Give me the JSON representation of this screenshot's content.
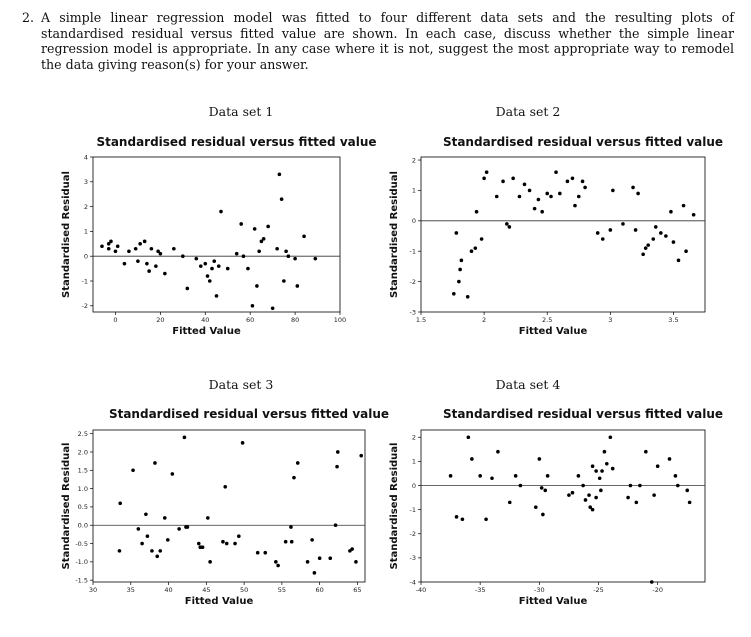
{
  "question": {
    "number": "2.",
    "text": "A simple linear regression model was fitted to four different data sets and the resulting plots of standardised residual versus fitted value are shown. In each case, discuss whether the simple linear regression model is appropriate. In any case where it is not, suggest the most appropriate way to remodel the data giving reason(s) for your answer."
  },
  "chart_data": [
    {
      "label": "Data set 1",
      "type": "scatter",
      "title": "Standardised residual versus fitted value",
      "xlabel": "Fitted Value",
      "ylabel": "Standardised Residual",
      "xlim": [
        -10,
        100
      ],
      "ylim": [
        -2.25,
        4
      ],
      "xticks": [
        0,
        20,
        40,
        60,
        80,
        100
      ],
      "yticks": [
        -2,
        -1,
        0,
        1,
        2,
        3,
        4
      ],
      "reference_line": 0,
      "points": [
        [
          -6,
          0.4
        ],
        [
          -3,
          0.5
        ],
        [
          -3,
          0.3
        ],
        [
          -2,
          0.6
        ],
        [
          0,
          0.2
        ],
        [
          1,
          0.4
        ],
        [
          4,
          -0.3
        ],
        [
          6,
          0.2
        ],
        [
          9,
          0.3
        ],
        [
          10,
          -0.2
        ],
        [
          11,
          0.5
        ],
        [
          13,
          0.6
        ],
        [
          14,
          -0.3
        ],
        [
          15,
          -0.6
        ],
        [
          16,
          0.3
        ],
        [
          18,
          -0.4
        ],
        [
          19,
          0.2
        ],
        [
          20,
          0.1
        ],
        [
          22,
          -0.7
        ],
        [
          26,
          0.3
        ],
        [
          30,
          0
        ],
        [
          32,
          -1.3
        ],
        [
          36,
          -0.1
        ],
        [
          38,
          -0.4
        ],
        [
          40,
          -0.3
        ],
        [
          41,
          -0.8
        ],
        [
          42,
          -1.0
        ],
        [
          43,
          -0.5
        ],
        [
          44,
          -0.2
        ],
        [
          45,
          -1.6
        ],
        [
          46,
          -0.4
        ],
        [
          47,
          1.8
        ],
        [
          50,
          -0.5
        ],
        [
          54,
          0.1
        ],
        [
          56,
          1.3
        ],
        [
          57,
          0.0
        ],
        [
          59,
          -0.5
        ],
        [
          61,
          -2.0
        ],
        [
          62,
          1.1
        ],
        [
          63,
          -1.2
        ],
        [
          64,
          0.2
        ],
        [
          65,
          0.6
        ],
        [
          66,
          0.7
        ],
        [
          68,
          1.2
        ],
        [
          70,
          -2.1
        ],
        [
          72,
          0.3
        ],
        [
          73,
          3.3
        ],
        [
          74,
          2.3
        ],
        [
          75,
          -1.0
        ],
        [
          76,
          0.2
        ],
        [
          77,
          0
        ],
        [
          80,
          -0.1
        ],
        [
          81,
          -1.2
        ],
        [
          84,
          0.8
        ],
        [
          89,
          -0.1
        ]
      ]
    },
    {
      "label": "Data set 2",
      "type": "scatter",
      "title": "Standardised residual versus fitted value",
      "xlabel": "Fitted Value",
      "ylabel": "Standardised Residual",
      "xlim": [
        1.5,
        3.75
      ],
      "ylim": [
        -3,
        2.1
      ],
      "xticks": [
        1.5,
        2.0,
        2.5,
        3.0,
        3.5
      ],
      "yticks": [
        -3,
        -2,
        -1,
        0,
        1,
        2
      ],
      "reference_line": 0,
      "points": [
        [
          1.76,
          -2.4
        ],
        [
          1.78,
          -0.4
        ],
        [
          1.8,
          -2.0
        ],
        [
          1.81,
          -1.6
        ],
        [
          1.82,
          -1.3
        ],
        [
          1.87,
          -2.5
        ],
        [
          1.9,
          -1.0
        ],
        [
          1.93,
          -0.9
        ],
        [
          1.94,
          0.3
        ],
        [
          1.98,
          -0.6
        ],
        [
          2.0,
          1.4
        ],
        [
          2.02,
          1.6
        ],
        [
          2.1,
          0.8
        ],
        [
          2.15,
          1.3
        ],
        [
          2.18,
          -0.1
        ],
        [
          2.2,
          -0.2
        ],
        [
          2.23,
          1.4
        ],
        [
          2.28,
          0.8
        ],
        [
          2.32,
          1.2
        ],
        [
          2.36,
          1.0
        ],
        [
          2.4,
          0.4
        ],
        [
          2.43,
          0.7
        ],
        [
          2.46,
          0.3
        ],
        [
          2.5,
          0.9
        ],
        [
          2.53,
          0.8
        ],
        [
          2.57,
          1.6
        ],
        [
          2.6,
          0.9
        ],
        [
          2.66,
          1.3
        ],
        [
          2.7,
          1.4
        ],
        [
          2.72,
          0.5
        ],
        [
          2.75,
          0.8
        ],
        [
          2.78,
          1.3
        ],
        [
          2.8,
          1.1
        ],
        [
          2.9,
          -0.4
        ],
        [
          2.94,
          -0.6
        ],
        [
          3.0,
          -0.3
        ],
        [
          3.02,
          1.0
        ],
        [
          3.1,
          -0.1
        ],
        [
          3.18,
          1.1
        ],
        [
          3.2,
          -0.3
        ],
        [
          3.22,
          0.9
        ],
        [
          3.26,
          -1.1
        ],
        [
          3.28,
          -0.9
        ],
        [
          3.3,
          -0.8
        ],
        [
          3.34,
          -0.6
        ],
        [
          3.36,
          -0.2
        ],
        [
          3.4,
          -0.4
        ],
        [
          3.44,
          -0.5
        ],
        [
          3.48,
          0.3
        ],
        [
          3.5,
          -0.7
        ],
        [
          3.54,
          -1.3
        ],
        [
          3.58,
          0.5
        ],
        [
          3.6,
          -1.0
        ],
        [
          3.66,
          0.2
        ]
      ]
    },
    {
      "label": "Data set 3",
      "type": "scatter",
      "title": "Standardised residual versus fitted value",
      "xlabel": "Fitted Value",
      "ylabel": "Standardised Residual",
      "xlim": [
        30,
        66
      ],
      "ylim": [
        -1.55,
        2.6
      ],
      "xticks": [
        30,
        35,
        40,
        45,
        50,
        55,
        60,
        65
      ],
      "yticks": [
        -1.5,
        -1.0,
        -0.5,
        0.0,
        0.5,
        1.0,
        1.5,
        2.0,
        2.5
      ],
      "yticklabels": [
        "-1.5",
        "-1.0",
        "-0.5",
        "0.0",
        "0.5",
        "1.0",
        "1.5",
        "2.0",
        "2.5"
      ],
      "reference_line": 0,
      "points": [
        [
          33.5,
          -0.7
        ],
        [
          33.6,
          0.6
        ],
        [
          35.3,
          1.5
        ],
        [
          36,
          -0.1
        ],
        [
          36.5,
          -0.5
        ],
        [
          37,
          0.3
        ],
        [
          37.2,
          -0.3
        ],
        [
          37.8,
          -0.7
        ],
        [
          38.2,
          1.7
        ],
        [
          38.5,
          -0.85
        ],
        [
          38.9,
          -0.7
        ],
        [
          39.5,
          0.2
        ],
        [
          39.9,
          -0.4
        ],
        [
          40.5,
          1.4
        ],
        [
          41.4,
          -0.1
        ],
        [
          42.1,
          2.4
        ],
        [
          42.3,
          -0.05
        ],
        [
          42.5,
          -0.05
        ],
        [
          44,
          -0.5
        ],
        [
          44.2,
          -0.6
        ],
        [
          44.5,
          -0.6
        ],
        [
          45.2,
          0.2
        ],
        [
          45.5,
          -1.0
        ],
        [
          47.2,
          -0.45
        ],
        [
          47.5,
          1.05
        ],
        [
          47.7,
          -0.5
        ],
        [
          48.8,
          -0.5
        ],
        [
          49.3,
          -0.3
        ],
        [
          49.8,
          2.25
        ],
        [
          51.8,
          -0.75
        ],
        [
          52.8,
          -0.75
        ],
        [
          54.2,
          -1.0
        ],
        [
          54.5,
          -1.1
        ],
        [
          55.5,
          -0.45
        ],
        [
          56.2,
          -0.05
        ],
        [
          56.3,
          -0.45
        ],
        [
          56.6,
          1.3
        ],
        [
          57.1,
          1.7
        ],
        [
          58.4,
          -1.0
        ],
        [
          59,
          -0.4
        ],
        [
          59.3,
          -1.3
        ],
        [
          60,
          -0.9
        ],
        [
          61.4,
          -0.9
        ],
        [
          62.1,
          0.0
        ],
        [
          62.3,
          1.6
        ],
        [
          62.4,
          2.0
        ],
        [
          64,
          -0.7
        ],
        [
          64.3,
          -0.65
        ],
        [
          64.8,
          -1.0
        ],
        [
          65.5,
          1.9
        ]
      ]
    },
    {
      "label": "Data set 4",
      "type": "scatter",
      "title": "Standardised residual versus fitted value",
      "xlabel": "Fitted Value",
      "ylabel": "Standardised Residual",
      "xlim": [
        -40,
        -16
      ],
      "ylim": [
        -4,
        2.3
      ],
      "xticks": [
        -40,
        -35,
        -30,
        -25,
        -20
      ],
      "yticks": [
        -4,
        -3,
        -2,
        -1,
        0,
        1,
        2
      ],
      "reference_line": 0,
      "points": [
        [
          -37.5,
          0.4
        ],
        [
          -37,
          -1.3
        ],
        [
          -36.5,
          -1.4
        ],
        [
          -36,
          2.0
        ],
        [
          -35.7,
          1.1
        ],
        [
          -35,
          0.4
        ],
        [
          -34.5,
          -1.4
        ],
        [
          -34,
          0.3
        ],
        [
          -33.5,
          1.4
        ],
        [
          -32.5,
          -0.7
        ],
        [
          -32,
          0.4
        ],
        [
          -31.6,
          0
        ],
        [
          -30.3,
          -0.9
        ],
        [
          -30,
          1.1
        ],
        [
          -29.8,
          -0.1
        ],
        [
          -29.7,
          -1.2
        ],
        [
          -29.5,
          -0.2
        ],
        [
          -29.3,
          0.4
        ],
        [
          -27.5,
          -0.4
        ],
        [
          -27.2,
          -0.3
        ],
        [
          -26.7,
          0.4
        ],
        [
          -26.3,
          0.0
        ],
        [
          -26.1,
          -0.6
        ],
        [
          -25.8,
          -0.4
        ],
        [
          -25.7,
          -0.9
        ],
        [
          -25.5,
          -1.0
        ],
        [
          -25.5,
          0.8
        ],
        [
          -25.2,
          0.6
        ],
        [
          -25.2,
          -0.5
        ],
        [
          -24.9,
          0.3
        ],
        [
          -24.8,
          -0.2
        ],
        [
          -24.7,
          0.6
        ],
        [
          -24.5,
          1.4
        ],
        [
          -24.3,
          0.9
        ],
        [
          -24,
          2.0
        ],
        [
          -23.8,
          0.7
        ],
        [
          -22.5,
          -0.5
        ],
        [
          -22.3,
          0.0
        ],
        [
          -21.8,
          -0.7
        ],
        [
          -21.5,
          0.0
        ],
        [
          -21,
          1.4
        ],
        [
          -20.5,
          -4.0
        ],
        [
          -20.3,
          -0.4
        ],
        [
          -20,
          0.8
        ],
        [
          -19,
          1.1
        ],
        [
          -18.5,
          0.4
        ],
        [
          -18.3,
          0.0
        ],
        [
          -17.5,
          -0.2
        ],
        [
          -17.3,
          -0.7
        ]
      ]
    }
  ]
}
